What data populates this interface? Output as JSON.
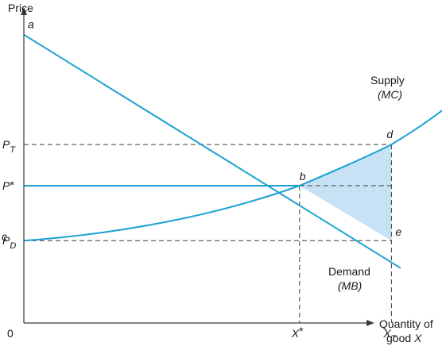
{
  "chart_data": {
    "type": "line",
    "title": "",
    "xlabel_line1": "Quantity of",
    "xlabel_line2": "good",
    "xlabel_var": "X",
    "ylabel": "Price",
    "origin_label": "0",
    "x_ticks": [
      {
        "main": "X",
        "sup": "*",
        "sub": "",
        "x": 0.6
      },
      {
        "main": "X",
        "sup": "",
        "sub": "T",
        "x": 0.8
      }
    ],
    "y_ticks": [
      {
        "main": "P",
        "sup": "",
        "sub": "T",
        "y": 0.65
      },
      {
        "main": "P",
        "sup": "*",
        "sub": "",
        "y": 0.5
      },
      {
        "main": "P",
        "sup": "",
        "sub": "D",
        "y": 0.3
      }
    ],
    "series": [
      {
        "name_line1": "Supply",
        "name_line2": "(MC)",
        "shape": "convex",
        "x": [
          0.0,
          0.6,
          0.8,
          1.0
        ],
        "y": [
          0.3,
          0.5,
          0.65,
          0.9
        ]
      },
      {
        "name_line1": "Demand",
        "name_line2": "(MB)",
        "shape": "linear",
        "x": [
          0.0,
          0.6,
          0.8,
          0.82
        ],
        "y": [
          1.05,
          0.5,
          0.3,
          0.2
        ]
      }
    ],
    "points": [
      {
        "label": "a",
        "x": 0.0,
        "y": 1.05
      },
      {
        "label": "b",
        "x": 0.6,
        "y": 0.5
      },
      {
        "label": "c",
        "x": 0.0,
        "y": 0.3
      },
      {
        "label": "d",
        "x": 0.8,
        "y": 0.65
      },
      {
        "label": "e",
        "x": 0.8,
        "y": 0.3
      }
    ],
    "shaded_region": {
      "vertices": [
        "b",
        "d",
        "e"
      ],
      "color": "#c6e2f4"
    },
    "colors": {
      "curve": "#1ba1d1",
      "axis": "#3a3a3a",
      "guide": "#3a3a3a"
    },
    "grid": false,
    "legend": "none"
  }
}
